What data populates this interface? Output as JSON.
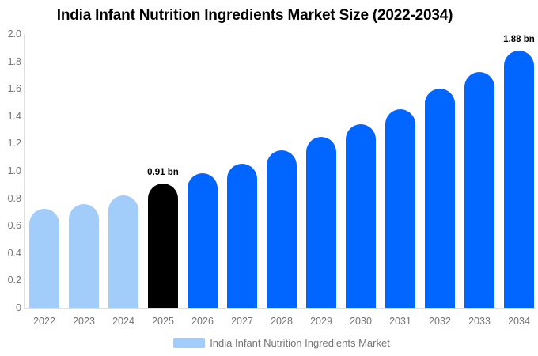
{
  "title": "India Infant Nutrition Ingredients Market Size (2022-2034)",
  "legend": {
    "label": "India Infant Nutrition Ingredients Market",
    "swatch_color": "#a2ccfa"
  },
  "colors": {
    "light_blue": "#a2ccfa",
    "blue": "#0066ff",
    "black": "#000000",
    "axis_line": "#e0e0e0",
    "tick_text": "#757575",
    "title_text": "#000000"
  },
  "chart_data": {
    "type": "bar",
    "title": "India Infant Nutrition Ingredients Market Size (2022-2034)",
    "xlabel": "",
    "ylabel": "",
    "ylim": [
      0,
      2.0
    ],
    "grid": false,
    "legend_position": "bottom",
    "categories": [
      "2022",
      "2023",
      "2024",
      "2025",
      "2026",
      "2027",
      "2028",
      "2029",
      "2030",
      "2031",
      "2032",
      "2033",
      "2034"
    ],
    "values": [
      0.72,
      0.76,
      0.82,
      0.91,
      0.98,
      1.05,
      1.15,
      1.25,
      1.34,
      1.45,
      1.6,
      1.72,
      1.88
    ],
    "bar_colors": [
      "#a2ccfa",
      "#a2ccfa",
      "#a2ccfa",
      "#000000",
      "#0066ff",
      "#0066ff",
      "#0066ff",
      "#0066ff",
      "#0066ff",
      "#0066ff",
      "#0066ff",
      "#0066ff",
      "#0066ff"
    ],
    "yticks": [
      "0",
      "0.2",
      "0.4",
      "0.6",
      "0.8",
      "1.0",
      "1.2",
      "1.4",
      "1.6",
      "1.8",
      "2.0"
    ],
    "annotations": [
      {
        "category": "2025",
        "text": "0.91 bn"
      },
      {
        "category": "2034",
        "text": "1.88 bn"
      }
    ]
  }
}
